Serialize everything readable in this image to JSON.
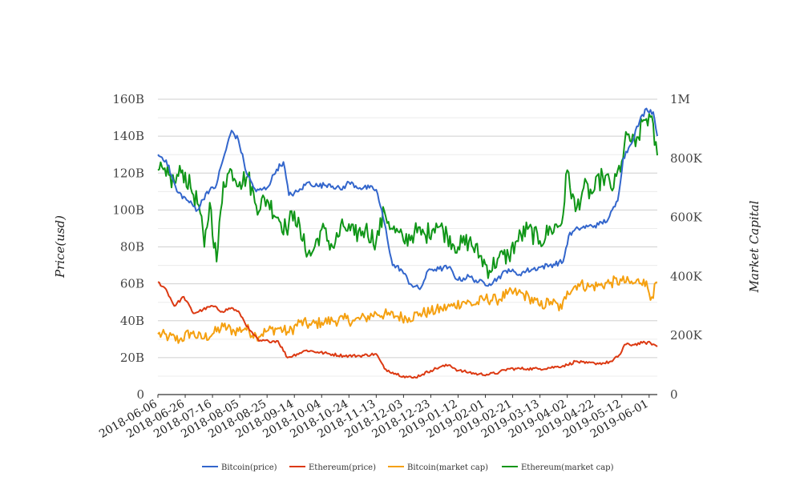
{
  "chart_data": {
    "type": "line",
    "title": "",
    "xlabel": "",
    "ylabel_left": "Price(usd)",
    "ylabel_right": "Market Capital",
    "x_ticks": [
      "2018-06-06",
      "2018-06-26",
      "2018-07-16",
      "2018-08-05",
      "2018-08-25",
      "2018-09-14",
      "2018-10-04",
      "2018-10-24",
      "2018-11-13",
      "2018-12-03",
      "2018-12-23",
      "2019-01-12",
      "2019-02-01",
      "2019-02-21",
      "2019-03-13",
      "2019-04-02",
      "2019-04-22",
      "2019-05-12",
      "2019-06-01"
    ],
    "x_range": [
      "2018-06-06",
      "2019-06-07"
    ],
    "y_left": {
      "min": 0,
      "max": 160,
      "ticks": [
        0,
        20,
        40,
        60,
        80,
        100,
        120,
        140,
        160
      ],
      "tick_labels": [
        "0",
        "20B",
        "40B",
        "60B",
        "80B",
        "100B",
        "120B",
        "140B",
        "160B"
      ]
    },
    "y_right": {
      "min": 0,
      "max": 1000,
      "ticks": [
        0,
        200,
        400,
        600,
        800,
        1000
      ],
      "tick_labels": [
        "0",
        "200K",
        "400K",
        "600K",
        "800K",
        "1M"
      ]
    },
    "grid": true,
    "legend": "bottom",
    "series": [
      {
        "name": "Bitcoin(price)",
        "color": "#3366cc",
        "axis": "left",
        "unit": "B",
        "points": [
          [
            "2018-06-06",
            130
          ],
          [
            "2018-06-12",
            127
          ],
          [
            "2018-06-20",
            110
          ],
          [
            "2018-06-28",
            105
          ],
          [
            "2018-07-05",
            100
          ],
          [
            "2018-07-12",
            110
          ],
          [
            "2018-07-18",
            112
          ],
          [
            "2018-07-24",
            128
          ],
          [
            "2018-07-30",
            143
          ],
          [
            "2018-08-04",
            138
          ],
          [
            "2018-08-10",
            120
          ],
          [
            "2018-08-17",
            110
          ],
          [
            "2018-08-25",
            112
          ],
          [
            "2018-09-01",
            122
          ],
          [
            "2018-09-06",
            126
          ],
          [
            "2018-09-10",
            108
          ],
          [
            "2018-09-17",
            110
          ],
          [
            "2018-09-24",
            115
          ],
          [
            "2018-10-01",
            113
          ],
          [
            "2018-10-10",
            114
          ],
          [
            "2018-10-18",
            111
          ],
          [
            "2018-10-24",
            115
          ],
          [
            "2018-11-01",
            112
          ],
          [
            "2018-11-08",
            112
          ],
          [
            "2018-11-13",
            111
          ],
          [
            "2018-11-19",
            93
          ],
          [
            "2018-11-25",
            70
          ],
          [
            "2018-12-01",
            68
          ],
          [
            "2018-12-08",
            60
          ],
          [
            "2018-12-15",
            57
          ],
          [
            "2018-12-22",
            68
          ],
          [
            "2018-12-29",
            68
          ],
          [
            "2019-01-05",
            69
          ],
          [
            "2019-01-12",
            62
          ],
          [
            "2019-01-20",
            64
          ],
          [
            "2019-01-27",
            61
          ],
          [
            "2019-02-04",
            60
          ],
          [
            "2019-02-10",
            63
          ],
          [
            "2019-02-18",
            68
          ],
          [
            "2019-02-24",
            65
          ],
          [
            "2019-03-03",
            67
          ],
          [
            "2019-03-13",
            69
          ],
          [
            "2019-03-20",
            70
          ],
          [
            "2019-03-30",
            72
          ],
          [
            "2019-04-03",
            86
          ],
          [
            "2019-04-10",
            90
          ],
          [
            "2019-04-17",
            91
          ],
          [
            "2019-04-25",
            92
          ],
          [
            "2019-05-02",
            95
          ],
          [
            "2019-05-09",
            105
          ],
          [
            "2019-05-13",
            128
          ],
          [
            "2019-05-18",
            135
          ],
          [
            "2019-05-25",
            148
          ],
          [
            "2019-05-30",
            155
          ],
          [
            "2019-06-04",
            153
          ],
          [
            "2019-06-07",
            140
          ]
        ]
      },
      {
        "name": "Ethereum(price)",
        "color": "#dc3912",
        "axis": "left",
        "unit": "B",
        "points": [
          [
            "2018-06-06",
            61
          ],
          [
            "2018-06-12",
            57
          ],
          [
            "2018-06-18",
            48
          ],
          [
            "2018-06-25",
            53
          ],
          [
            "2018-07-02",
            44
          ],
          [
            "2018-07-09",
            46
          ],
          [
            "2018-07-16",
            48
          ],
          [
            "2018-07-23",
            45
          ],
          [
            "2018-07-30",
            47
          ],
          [
            "2018-08-05",
            44
          ],
          [
            "2018-08-12",
            35
          ],
          [
            "2018-08-19",
            29
          ],
          [
            "2018-08-26",
            29
          ],
          [
            "2018-09-02",
            29
          ],
          [
            "2018-09-09",
            20
          ],
          [
            "2018-09-16",
            22
          ],
          [
            "2018-09-23",
            24
          ],
          [
            "2018-10-01",
            23
          ],
          [
            "2018-10-10",
            22
          ],
          [
            "2018-10-20",
            21
          ],
          [
            "2018-11-01",
            21
          ],
          [
            "2018-11-13",
            22
          ],
          [
            "2018-11-19",
            14
          ],
          [
            "2018-11-25",
            12
          ],
          [
            "2018-12-03",
            10
          ],
          [
            "2018-12-10",
            9
          ],
          [
            "2018-12-17",
            11
          ],
          [
            "2018-12-23",
            13
          ],
          [
            "2018-12-30",
            15
          ],
          [
            "2019-01-06",
            16
          ],
          [
            "2019-01-12",
            13
          ],
          [
            "2019-01-20",
            12
          ],
          [
            "2019-01-27",
            11
          ],
          [
            "2019-02-04",
            11
          ],
          [
            "2019-02-11",
            12
          ],
          [
            "2019-02-18",
            14
          ],
          [
            "2019-02-24",
            14
          ],
          [
            "2019-03-04",
            14
          ],
          [
            "2019-03-13",
            14
          ],
          [
            "2019-03-25",
            15
          ],
          [
            "2019-04-02",
            16
          ],
          [
            "2019-04-08",
            18
          ],
          [
            "2019-04-15",
            17
          ],
          [
            "2019-04-22",
            17
          ],
          [
            "2019-04-29",
            17
          ],
          [
            "2019-05-05",
            18
          ],
          [
            "2019-05-11",
            22
          ],
          [
            "2019-05-14",
            27
          ],
          [
            "2019-05-20",
            27
          ],
          [
            "2019-05-27",
            28
          ],
          [
            "2019-06-02",
            28
          ],
          [
            "2019-06-07",
            26
          ]
        ]
      },
      {
        "name": "Bitcoin(market cap)",
        "color": "#f5a010",
        "axis": "right",
        "unit": "K",
        "points": [
          [
            "2018-06-06",
            205
          ],
          [
            "2018-06-14",
            195
          ],
          [
            "2018-06-22",
            185
          ],
          [
            "2018-06-30",
            210
          ],
          [
            "2018-07-08",
            190
          ],
          [
            "2018-07-16",
            205
          ],
          [
            "2018-07-24",
            230
          ],
          [
            "2018-08-01",
            215
          ],
          [
            "2018-08-09",
            225
          ],
          [
            "2018-08-17",
            200
          ],
          [
            "2018-08-25",
            215
          ],
          [
            "2018-09-02",
            225
          ],
          [
            "2018-09-10",
            210
          ],
          [
            "2018-09-18",
            245
          ],
          [
            "2018-09-26",
            235
          ],
          [
            "2018-10-04",
            245
          ],
          [
            "2018-10-12",
            250
          ],
          [
            "2018-10-20",
            255
          ],
          [
            "2018-10-28",
            250
          ],
          [
            "2018-11-05",
            260
          ],
          [
            "2018-11-13",
            275
          ],
          [
            "2018-11-21",
            270
          ],
          [
            "2018-11-29",
            265
          ],
          [
            "2018-12-07",
            260
          ],
          [
            "2018-12-15",
            275
          ],
          [
            "2018-12-23",
            280
          ],
          [
            "2018-12-31",
            290
          ],
          [
            "2019-01-08",
            300
          ],
          [
            "2019-01-16",
            315
          ],
          [
            "2019-01-24",
            305
          ],
          [
            "2019-02-01",
            325
          ],
          [
            "2019-02-09",
            320
          ],
          [
            "2019-02-17",
            340
          ],
          [
            "2019-02-25",
            345
          ],
          [
            "2019-03-05",
            330
          ],
          [
            "2019-03-13",
            300
          ],
          [
            "2019-03-21",
            315
          ],
          [
            "2019-03-29",
            290
          ],
          [
            "2019-04-02",
            350
          ],
          [
            "2019-04-10",
            375
          ],
          [
            "2019-04-18",
            365
          ],
          [
            "2019-04-26",
            370
          ],
          [
            "2019-05-04",
            380
          ],
          [
            "2019-05-12",
            385
          ],
          [
            "2019-05-20",
            375
          ],
          [
            "2019-05-28",
            390
          ],
          [
            "2019-06-03",
            330
          ],
          [
            "2019-06-07",
            380
          ]
        ]
      },
      {
        "name": "Ethereum(market cap)",
        "color": "#109618",
        "axis": "right",
        "unit": "K",
        "points": [
          [
            "2018-06-06",
            760
          ],
          [
            "2018-06-12",
            740
          ],
          [
            "2018-06-18",
            720
          ],
          [
            "2018-06-24",
            760
          ],
          [
            "2018-06-30",
            700
          ],
          [
            "2018-07-06",
            640
          ],
          [
            "2018-07-10",
            500
          ],
          [
            "2018-07-14",
            650
          ],
          [
            "2018-07-19",
            450
          ],
          [
            "2018-07-24",
            720
          ],
          [
            "2018-07-30",
            760
          ],
          [
            "2018-08-05",
            720
          ],
          [
            "2018-08-11",
            740
          ],
          [
            "2018-08-17",
            640
          ],
          [
            "2018-08-25",
            660
          ],
          [
            "2018-09-02",
            600
          ],
          [
            "2018-09-08",
            560
          ],
          [
            "2018-09-14",
            620
          ],
          [
            "2018-09-20",
            520
          ],
          [
            "2018-09-26",
            470
          ],
          [
            "2018-10-04",
            560
          ],
          [
            "2018-10-12",
            500
          ],
          [
            "2018-10-20",
            570
          ],
          [
            "2018-10-28",
            540
          ],
          [
            "2018-11-05",
            560
          ],
          [
            "2018-11-13",
            520
          ],
          [
            "2018-11-19",
            620
          ],
          [
            "2018-11-25",
            560
          ],
          [
            "2018-12-03",
            520
          ],
          [
            "2018-12-11",
            550
          ],
          [
            "2018-12-19",
            540
          ],
          [
            "2018-12-27",
            580
          ],
          [
            "2019-01-04",
            540
          ],
          [
            "2019-01-12",
            500
          ],
          [
            "2019-01-20",
            520
          ],
          [
            "2019-01-28",
            470
          ],
          [
            "2019-02-04",
            420
          ],
          [
            "2019-02-10",
            460
          ],
          [
            "2019-02-18",
            470
          ],
          [
            "2019-02-24",
            520
          ],
          [
            "2019-03-04",
            560
          ],
          [
            "2019-03-13",
            520
          ],
          [
            "2019-03-21",
            560
          ],
          [
            "2019-03-29",
            580
          ],
          [
            "2019-04-02",
            760
          ],
          [
            "2019-04-08",
            620
          ],
          [
            "2019-04-14",
            700
          ],
          [
            "2019-04-20",
            680
          ],
          [
            "2019-04-28",
            740
          ],
          [
            "2019-05-06",
            700
          ],
          [
            "2019-05-12",
            790
          ],
          [
            "2019-05-16",
            880
          ],
          [
            "2019-05-22",
            840
          ],
          [
            "2019-05-28",
            930
          ],
          [
            "2019-06-02",
            940
          ],
          [
            "2019-06-07",
            810
          ]
        ]
      }
    ]
  }
}
